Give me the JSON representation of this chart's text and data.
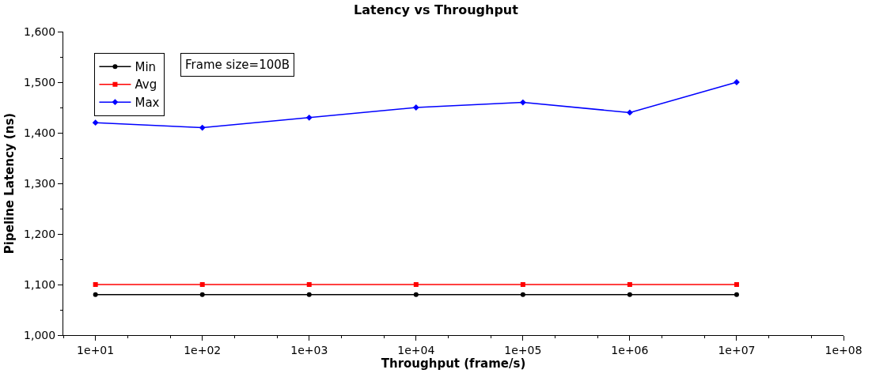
{
  "chart_data": {
    "type": "line",
    "title": "Latency vs Throughput",
    "xlabel": "Throughput (frame/s)",
    "ylabel": "Pipeline Latency (ns)",
    "x": [
      10,
      100,
      1000,
      10000,
      100000,
      1000000,
      10000000
    ],
    "series": [
      {
        "name": "Min",
        "color": "#000000",
        "marker": "circle",
        "values": [
          1080,
          1080,
          1080,
          1080,
          1080,
          1080,
          1080
        ]
      },
      {
        "name": "Avg",
        "color": "#ff0000",
        "marker": "square",
        "values": [
          1100,
          1100,
          1100,
          1100,
          1100,
          1100,
          1100
        ]
      },
      {
        "name": "Max",
        "color": "#0000ff",
        "marker": "diamond",
        "values": [
          1420,
          1410,
          1430,
          1450,
          1460,
          1440,
          1500
        ]
      }
    ],
    "log": "x",
    "xlim": [
      5,
      100000000
    ],
    "xticks": [
      {
        "value": 10,
        "label": "1e+01"
      },
      {
        "value": 100,
        "label": "1e+02"
      },
      {
        "value": 1000,
        "label": "1e+03"
      },
      {
        "value": 10000,
        "label": "1e+04"
      },
      {
        "value": 100000,
        "label": "1e+05"
      },
      {
        "value": 1000000,
        "label": "1e+06"
      },
      {
        "value": 10000000,
        "label": "1e+07"
      },
      {
        "value": 100000000,
        "label": "1e+08"
      }
    ],
    "ylim": [
      1000,
      1600
    ],
    "yticks": [
      {
        "value": 1000,
        "label": "1,000"
      },
      {
        "value": 1100,
        "label": "1,100"
      },
      {
        "value": 1200,
        "label": "1,200"
      },
      {
        "value": 1300,
        "label": "1,300"
      },
      {
        "value": 1400,
        "label": "1,400"
      },
      {
        "value": 1500,
        "label": "1,500"
      },
      {
        "value": 1600,
        "label": "1,600"
      }
    ],
    "annotations": [
      "Frame size=100B"
    ],
    "legend": "top left",
    "line_style": "solid"
  }
}
